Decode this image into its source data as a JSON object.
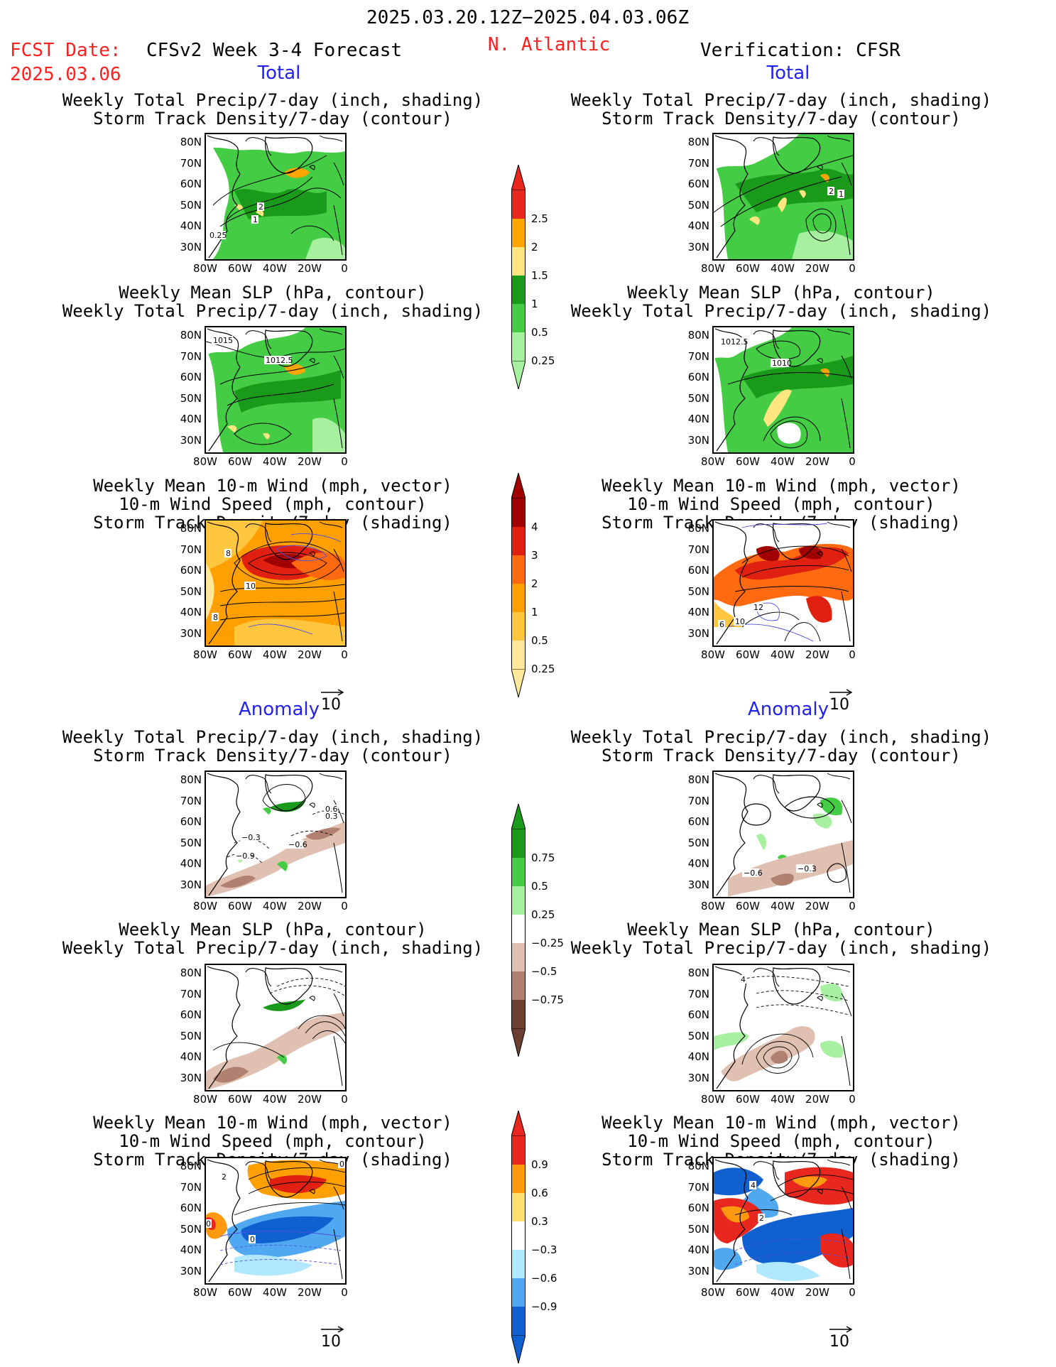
{
  "header": {
    "period": "2025.03.20.12Z−2025.04.03.06Z",
    "fcst_label": "FCST Date:",
    "fcst_date": "2025.03.06",
    "model": "CFSv2 Week 3-4 Forecast",
    "region": "N. Atlantic",
    "verification": "Verification: CFSR"
  },
  "sections": {
    "total": "Total",
    "anomaly": "Anomaly"
  },
  "axes": {
    "lat": [
      "80N",
      "70N",
      "60N",
      "50N",
      "40N",
      "30N"
    ],
    "lon": [
      "80W",
      "60W",
      "40W",
      "20W",
      "0"
    ]
  },
  "titles": {
    "precip": [
      "Weekly Total Precip/7-day (inch, shading)",
      "Storm Track Density/7-day (contour)"
    ],
    "slp": [
      "Weekly Mean SLP (hPa, contour)",
      "Weekly Total Precip/7-day (inch, shading)"
    ],
    "wind": [
      "Weekly Mean 10-m Wind (mph, vector)",
      "10-m Wind Speed (mph, contour)",
      "Storm Track Density/7-day (shading)"
    ]
  },
  "vector_ref": "10",
  "colorbars": {
    "total_precip": {
      "labels": [
        "2.5",
        "2",
        "1.5",
        "1",
        "0.5",
        "0.25"
      ],
      "colors": [
        "#e8281e",
        "#ffa500",
        "#ffe680",
        "#1a9a1a",
        "#44cc44",
        "#a6f0a0"
      ]
    },
    "total_storm": {
      "labels": [
        "4",
        "3",
        "2",
        "1",
        "0.5",
        "0.25"
      ],
      "colors": [
        "#a00000",
        "#e02010",
        "#ff6a10",
        "#ffa000",
        "#ffc640",
        "#ffe89a"
      ]
    },
    "anom_precip": {
      "labels": [
        "0.75",
        "0.5",
        "0.25",
        "−0.25",
        "−0.5",
        "−0.75"
      ],
      "colors": [
        "#1a9a1a",
        "#44cc44",
        "#a6f0a0",
        "#ffffff",
        "#e0c0b0",
        "#b08070",
        "#6b4030"
      ]
    },
    "anom_storm": {
      "labels": [
        "0.9",
        "0.6",
        "0.3",
        "−0.3",
        "−0.6",
        "−0.9"
      ],
      "colors": [
        "#e8281e",
        "#ff9a10",
        "#ffe070",
        "#ffffff",
        "#b0e8ff",
        "#50a8f0",
        "#1060d0"
      ]
    }
  },
  "map_labels": {
    "tp1": [
      "2",
      "1",
      "0.25"
    ],
    "vp1": [
      "2",
      "1"
    ],
    "ts1": [
      "1015",
      "1012.5"
    ],
    "vs1": [
      "1012.5",
      "1010"
    ],
    "tw1": [
      "8",
      "10",
      "8"
    ],
    "vw1": [
      "12",
      "10",
      "6"
    ],
    "ap1": [
      "−0.3",
      "−0.6",
      "−0.9",
      "0.6",
      "0.3"
    ],
    "avp1": [
      "−0.6",
      "−0.3"
    ],
    "aw1": [
      "2",
      "0",
      "0",
      "0"
    ],
    "avw1": [
      "4",
      "2"
    ],
    "avs1": [
      "4"
    ]
  }
}
